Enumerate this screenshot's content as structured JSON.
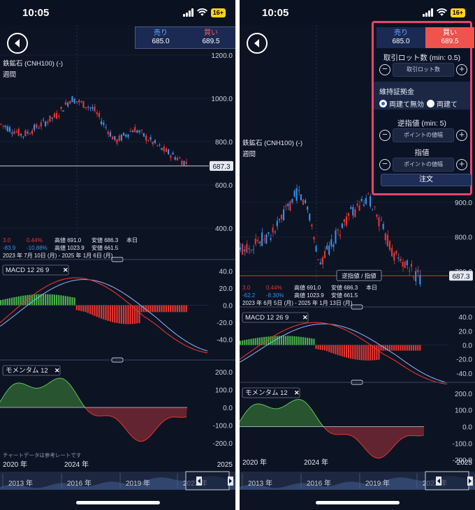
{
  "left": {
    "time": "10:05",
    "battery": "16+",
    "quote": {
      "sell_label": "売り",
      "sell_value": "685.0",
      "buy_label": "買い",
      "buy_value": "689.5"
    },
    "chart": {
      "instrument": "鉄鉱石 (CNH100) (-)",
      "period": "週間",
      "price_axis": [
        "1200.0",
        "1000.0",
        "800.0",
        "600.0",
        "400.0"
      ],
      "current_price": "687.3",
      "stats": {
        "change": "3.0",
        "change_pct": "0.44%",
        "high_label": "高値 691.0",
        "low_label": "安値 686.3",
        "today": "本日",
        "change2": "-83.9",
        "change2_pct": "-10.88%",
        "high2_label": "高値 1023.9",
        "low2_label": "安値 661.5",
        "range": "2023 年 7月 10日 (月) - 2025 年 1月 6日 (月)"
      },
      "macd": {
        "label": "MACD 12 26 9",
        "axis": [
          "40.0",
          "20.0",
          "0.0",
          "-20.0",
          "-40.0"
        ]
      },
      "momentum": {
        "label": "モメンタム 12",
        "axis": [
          "200.0",
          "100.0",
          "0.0",
          "-100.0",
          "-200.0"
        ]
      },
      "disclaimer": "チャートデータは参考レートです",
      "time_axis": [
        "2020 年",
        "2024 年",
        "2025"
      ],
      "nav_years": [
        "2013 年",
        "2016 年",
        "2019 年",
        "2022 年"
      ]
    }
  },
  "right": {
    "time": "10:05",
    "battery": "16+",
    "order_panel": {
      "sell_label": "売り",
      "sell_value": "685.0",
      "buy_label": "買い",
      "buy_value": "689.5",
      "lot_label": "取引ロット数 (min: 0.5)",
      "lot_placeholder": "取引ロット数",
      "margin_label": "維持証拠金",
      "radio_hedge_off": "両建て無効",
      "radio_hedge_on": "両建て",
      "stop_label": "逆指値 (min: 5)",
      "stop_placeholder": "ポイントの値幅",
      "limit_label": "指値",
      "limit_placeholder": "ポイントの値幅",
      "order_button": "注文"
    },
    "chart": {
      "instrument": "鉄鉱石 (CNH100) (-)",
      "period": "週間",
      "price_axis": [
        "900.0",
        "800.0",
        "700.0"
      ],
      "current_price": "687.3",
      "order_line_label": "逆指値 / 指値",
      "stats": {
        "change": "3.0",
        "change_pct": "0.44%",
        "high_label": "高値 691.0",
        "low_label": "安値 686.3",
        "today": "本日",
        "change2": "-62.2",
        "change2_pct": "-8.30%",
        "high2_label": "高値 1023.9",
        "low2_label": "安値 661.5",
        "range": "2023 年 6月 5日 (月) - 2025 年 1月 13日 (月)"
      },
      "macd": {
        "label": "MACD 12 26 9",
        "axis": [
          "40.0",
          "20.0",
          "0.0",
          "-20.0",
          "-40.0"
        ]
      },
      "momentum": {
        "label": "モメンタム 12",
        "axis": [
          "200.0",
          "100.0",
          "0.0",
          "-100.0",
          "-200.0"
        ]
      },
      "time_axis": [
        "2020 年",
        "2024 年",
        "2025"
      ],
      "nav_years": [
        "2013 年",
        "2016 年",
        "2019 年",
        "2022 年"
      ]
    }
  },
  "colors": {
    "bg": "#0c1424",
    "up": "#e8342f",
    "down": "#3c8ee8",
    "macd_line": "#e8342f",
    "signal_line": "#8fb4ff",
    "hist_pos": "#49b34a",
    "hist_neg": "#e8342f",
    "mom_pos": "#3f8a3a",
    "mom_neg": "#a8323b",
    "accent_border": "#e8456c"
  }
}
